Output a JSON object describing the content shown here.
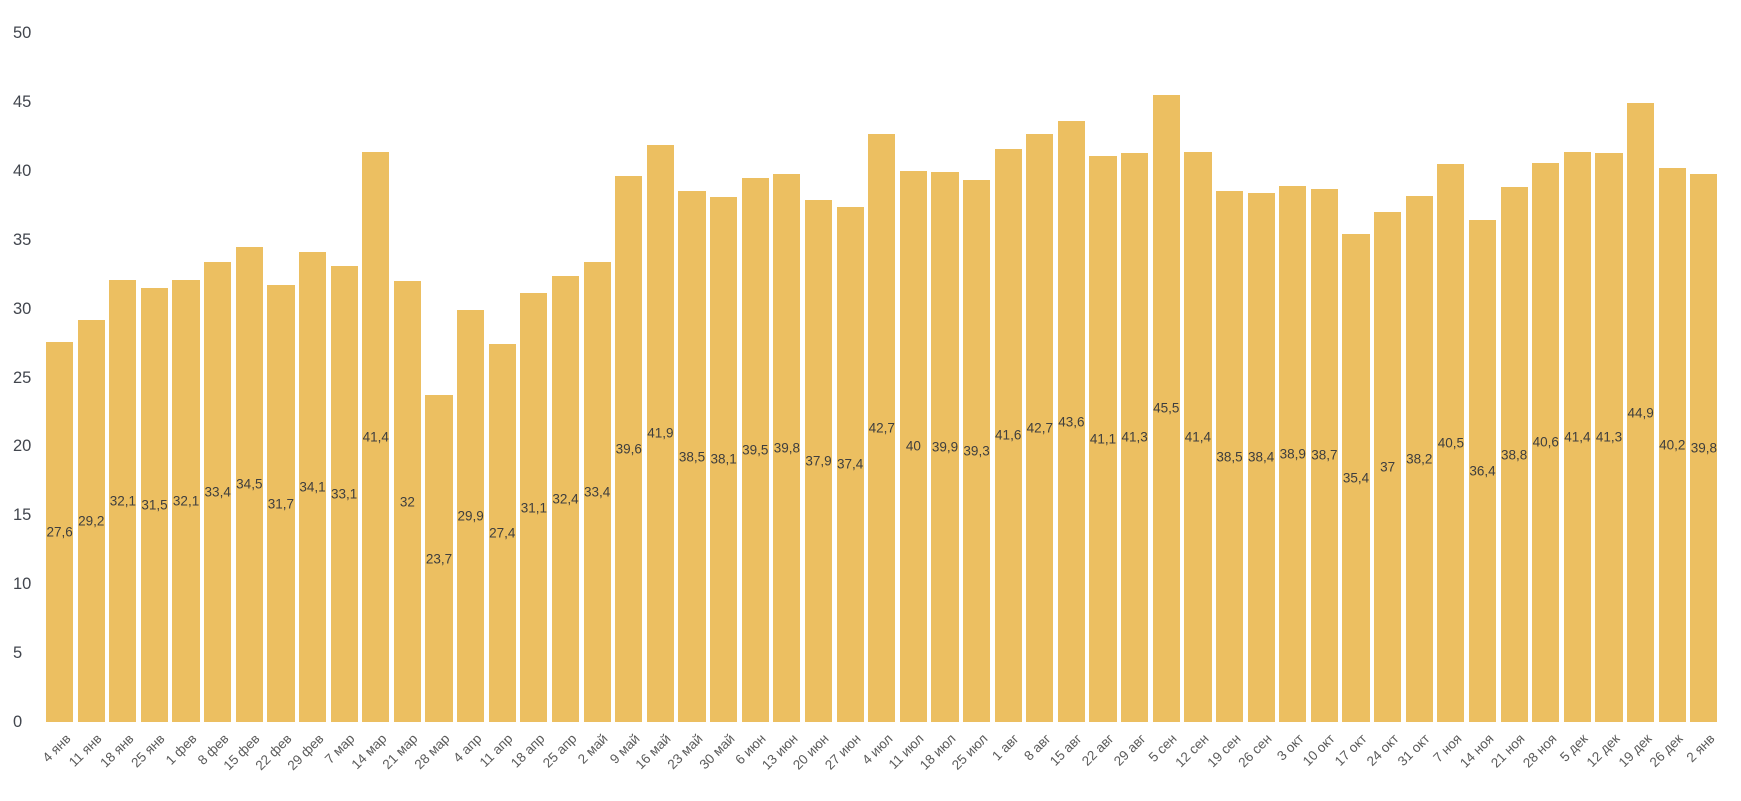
{
  "chart_data": {
    "type": "bar",
    "title": "",
    "xlabel": "",
    "ylabel": "",
    "ylim": [
      0,
      50
    ],
    "y_ticks": [
      "0",
      "5",
      "10",
      "15",
      "20",
      "25",
      "30",
      "35",
      "40",
      "45",
      "50"
    ],
    "grid": false,
    "legend": false,
    "bar_color": "#ecbf61",
    "value_label_color": "#3e3e3e",
    "y_axis_label_color": "#42464e",
    "x_axis_label_color": "#5a5a5a",
    "categories": [
      "4 янв",
      "11 янв",
      "18 янв",
      "25 янв",
      "1 фев",
      "8 фев",
      "15 фев",
      "22 фев",
      "29 фев",
      "7 мар",
      "14 мар",
      "21 мар",
      "28 мар",
      "4 апр",
      "11 апр",
      "18 апр",
      "25 апр",
      "2 май",
      "9 май",
      "16 май",
      "23 май",
      "30 май",
      "6 июн",
      "13 июн",
      "20 июн",
      "27 июн",
      "4 июл",
      "11 июл",
      "18 июл",
      "25 июл",
      "1 авг",
      "8 авг",
      "15 авг",
      "22 авг",
      "29 авг",
      "5 сен",
      "12 сен",
      "19 сен",
      "26 сен",
      "3 окт",
      "10 окт",
      "17 окт",
      "24 окт",
      "31 окт",
      "7 ноя",
      "14 ноя",
      "21 ноя",
      "28 ноя",
      "5 дек",
      "12 дек",
      "19 дек",
      "26 дек",
      "2 янв"
    ],
    "values": [
      27.6,
      29.2,
      32.1,
      31.5,
      32.1,
      33.4,
      34.5,
      31.7,
      34.1,
      33.1,
      41.4,
      32,
      23.7,
      29.9,
      27.4,
      31.1,
      32.4,
      33.4,
      39.6,
      41.9,
      38.5,
      38.1,
      39.5,
      39.8,
      37.9,
      37.4,
      42.7,
      40,
      39.9,
      39.3,
      41.6,
      42.7,
      43.6,
      41.1,
      41.3,
      45.5,
      41.4,
      38.5,
      38.4,
      38.9,
      38.7,
      35.4,
      37,
      38.2,
      40.5,
      36.4,
      38.8,
      40.6,
      41.4,
      41.3,
      44.9,
      40.2,
      39.8
    ],
    "value_labels": [
      "27,6",
      "29,2",
      "32,1",
      "31,5",
      "32,1",
      "33,4",
      "34,5",
      "31,7",
      "34,1",
      "33,1",
      "41,4",
      "32",
      "23,7",
      "29,9",
      "27,4",
      "31,1",
      "32,4",
      "33,4",
      "39,6",
      "41,9",
      "38,5",
      "38,1",
      "39,5",
      "39,8",
      "37,9",
      "37,4",
      "42,7",
      "40",
      "39,9",
      "39,3",
      "41,6",
      "42,7",
      "43,6",
      "41,1",
      "41,3",
      "45,5",
      "41,4",
      "38,5",
      "38,4",
      "38,9",
      "38,7",
      "35,4",
      "37",
      "38,2",
      "40,5",
      "36,4",
      "38,8",
      "40,6",
      "41,4",
      "41,3",
      "44,9",
      "40,2",
      "39,8"
    ]
  }
}
